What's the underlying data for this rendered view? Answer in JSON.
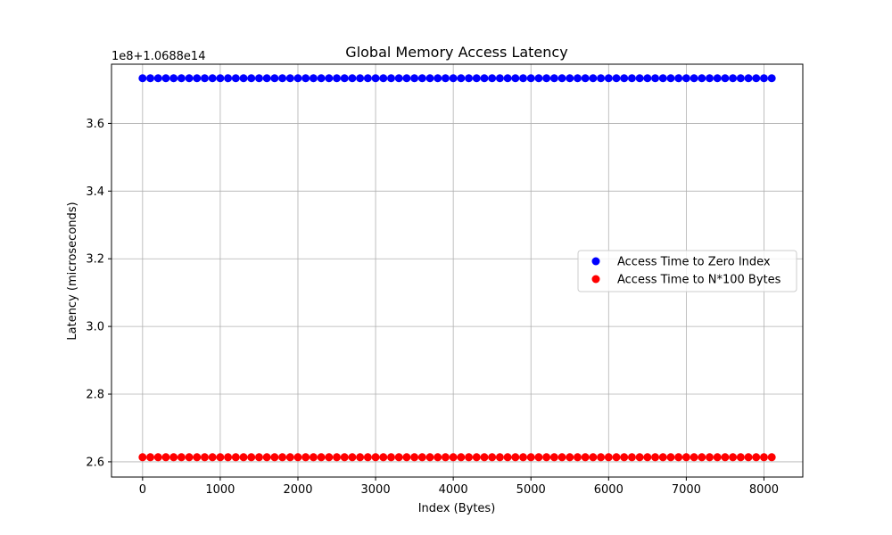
{
  "chart_data": {
    "type": "scatter",
    "title": "Global Memory Access Latency",
    "xlabel": "Index (Bytes)",
    "ylabel": "Latency (microseconds)",
    "offset_text": "1e8+1.0688e14",
    "xlim": [
      -400,
      8500
    ],
    "ylim": [
      2.555,
      3.775
    ],
    "x_ticks": [
      0,
      1000,
      2000,
      3000,
      4000,
      5000,
      6000,
      7000,
      8000
    ],
    "x_tick_labels": [
      "0",
      "1000",
      "2000",
      "3000",
      "4000",
      "5000",
      "6000",
      "7000",
      "8000"
    ],
    "y_ticks": [
      2.6,
      2.8,
      3.0,
      3.2,
      3.4,
      3.6
    ],
    "y_tick_labels": [
      "2.6",
      "2.8",
      "3.0",
      "3.2",
      "3.4",
      "3.6"
    ],
    "grid": true,
    "legend_position": "center-right",
    "x": {
      "start": 0,
      "end": 8100,
      "step": 100
    },
    "series": [
      {
        "name": "Access Time to Zero Index",
        "color": "#0000ff",
        "y": 3.7335
      },
      {
        "name": "Access Time to N*100 Bytes",
        "color": "#ff0000",
        "y": 2.6135
      }
    ]
  }
}
